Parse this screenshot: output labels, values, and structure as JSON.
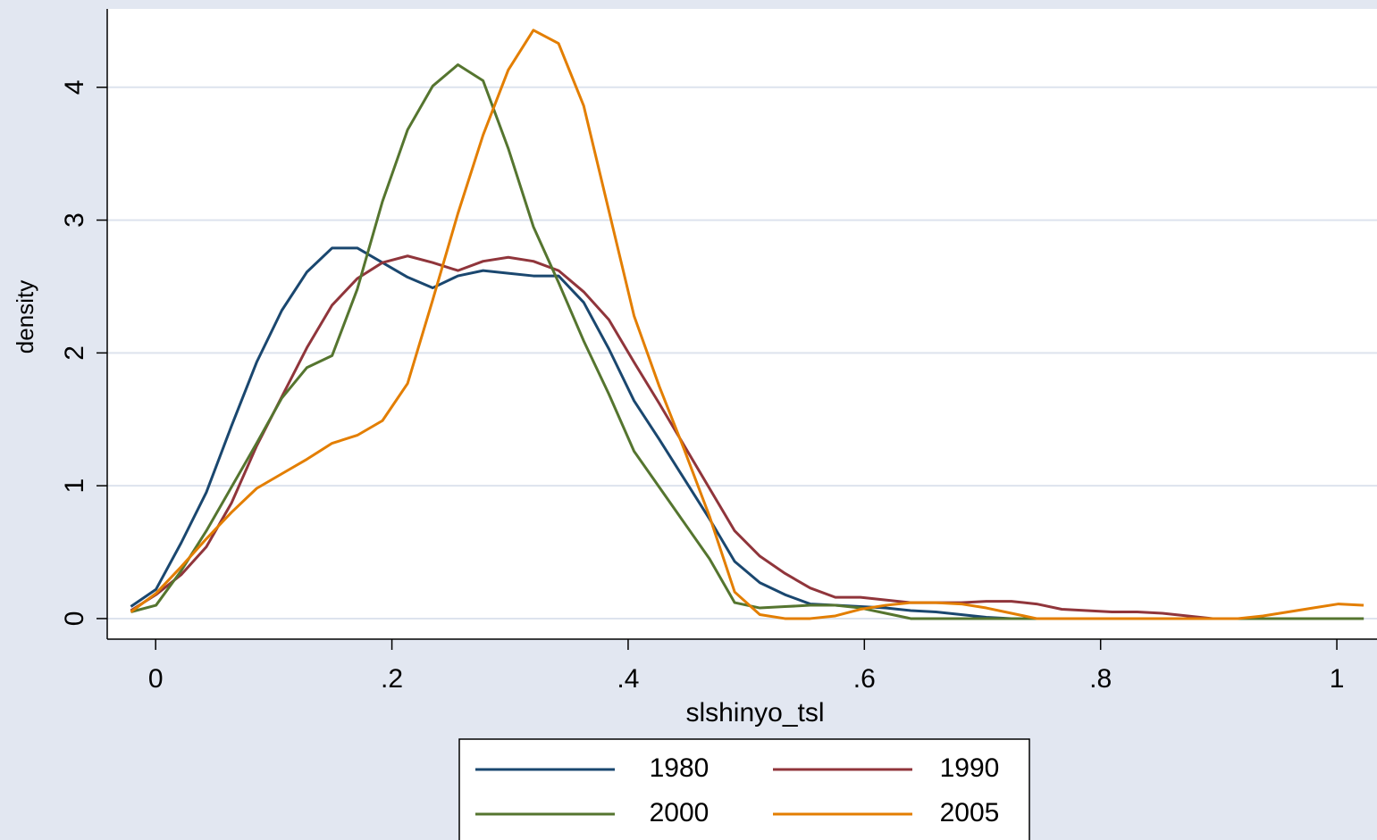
{
  "chart_data": {
    "type": "line",
    "x_label": "slshinyo_tsl",
    "y_label": "density",
    "x": [
      -0.021,
      0.0003,
      0.0216,
      0.0429,
      0.0642,
      0.0855,
      0.1068,
      0.1281,
      0.1494,
      0.1707,
      0.192,
      0.2133,
      0.2346,
      0.2559,
      0.2772,
      0.2985,
      0.3198,
      0.3411,
      0.3624,
      0.3837,
      0.405,
      0.4263,
      0.4476,
      0.4689,
      0.4902,
      0.5115,
      0.5328,
      0.5541,
      0.5754,
      0.5967,
      0.618,
      0.6393,
      0.6606,
      0.6819,
      0.7032,
      0.7245,
      0.7458,
      0.7671,
      0.7884,
      0.8097,
      0.831,
      0.8523,
      0.8736,
      0.8949,
      0.9162,
      0.9375,
      0.9588,
      0.9801,
      1.0014,
      1.0227
    ],
    "series": [
      {
        "name": "1980",
        "color": "#1a476f",
        "values": [
          0.09,
          0.22,
          0.57,
          0.95,
          1.45,
          1.93,
          2.32,
          2.61,
          2.79,
          2.79,
          2.68,
          2.57,
          2.49,
          2.58,
          2.62,
          2.6,
          2.58,
          2.58,
          2.38,
          2.03,
          1.64,
          1.35,
          1.05,
          0.75,
          0.43,
          0.27,
          0.18,
          0.11,
          0.1,
          0.09,
          0.08,
          0.06,
          0.05,
          0.03,
          0.01,
          0,
          0,
          0,
          0,
          0,
          0,
          0,
          0,
          0,
          0,
          0,
          0,
          0,
          0,
          0
        ]
      },
      {
        "name": "1990",
        "color": "#90353b",
        "values": [
          0.06,
          0.18,
          0.33,
          0.54,
          0.87,
          1.3,
          1.67,
          2.04,
          2.36,
          2.56,
          2.68,
          2.73,
          2.68,
          2.62,
          2.69,
          2.72,
          2.69,
          2.62,
          2.46,
          2.25,
          1.93,
          1.62,
          1.3,
          0.98,
          0.66,
          0.47,
          0.34,
          0.23,
          0.16,
          0.16,
          0.14,
          0.12,
          0.12,
          0.12,
          0.13,
          0.13,
          0.11,
          0.07,
          0.06,
          0.05,
          0.05,
          0.04,
          0.02,
          0,
          0,
          0,
          0,
          0,
          0,
          0
        ]
      },
      {
        "name": "2000",
        "color": "#55752f",
        "values": [
          0.05,
          0.1,
          0.36,
          0.66,
          0.99,
          1.32,
          1.66,
          1.89,
          1.98,
          2.48,
          3.14,
          3.68,
          4.01,
          4.17,
          4.05,
          3.54,
          2.95,
          2.53,
          2.09,
          1.69,
          1.26,
          0.99,
          0.72,
          0.45,
          0.12,
          0.08,
          0.09,
          0.1,
          0.1,
          0.08,
          0.04,
          0,
          0,
          0,
          0,
          0,
          0,
          0,
          0,
          0,
          0,
          0,
          0,
          0,
          0,
          0,
          0,
          0,
          0,
          0
        ]
      },
      {
        "name": "2005",
        "color": "#e37e00",
        "values": [
          0.05,
          0.19,
          0.39,
          0.6,
          0.8,
          0.98,
          1.09,
          1.2,
          1.32,
          1.38,
          1.49,
          1.77,
          2.4,
          3.05,
          3.64,
          4.13,
          4.43,
          4.33,
          3.86,
          3.07,
          2.28,
          1.75,
          1.27,
          0.77,
          0.2,
          0.03,
          0,
          0,
          0.02,
          0.07,
          0.1,
          0.12,
          0.12,
          0.11,
          0.08,
          0.04,
          0,
          0,
          0,
          0,
          0,
          0,
          0,
          0,
          0,
          0.02,
          0.05,
          0.08,
          0.11,
          0.1
        ]
      }
    ],
    "xlim": [
      -0.041,
      1.034
    ],
    "ylim": [
      -0.155,
      4.59
    ],
    "xticks": [
      0,
      {
        "value": 0.2,
        "label": ".2"
      },
      {
        "value": 0.4,
        "label": ".4"
      },
      {
        "value": 0.6,
        "label": ".6"
      },
      {
        "value": 0.8,
        "label": ".8"
      },
      1
    ],
    "yticks": [
      0,
      1,
      2,
      3,
      4
    ],
    "grid": true,
    "legend_position": "bottom"
  }
}
